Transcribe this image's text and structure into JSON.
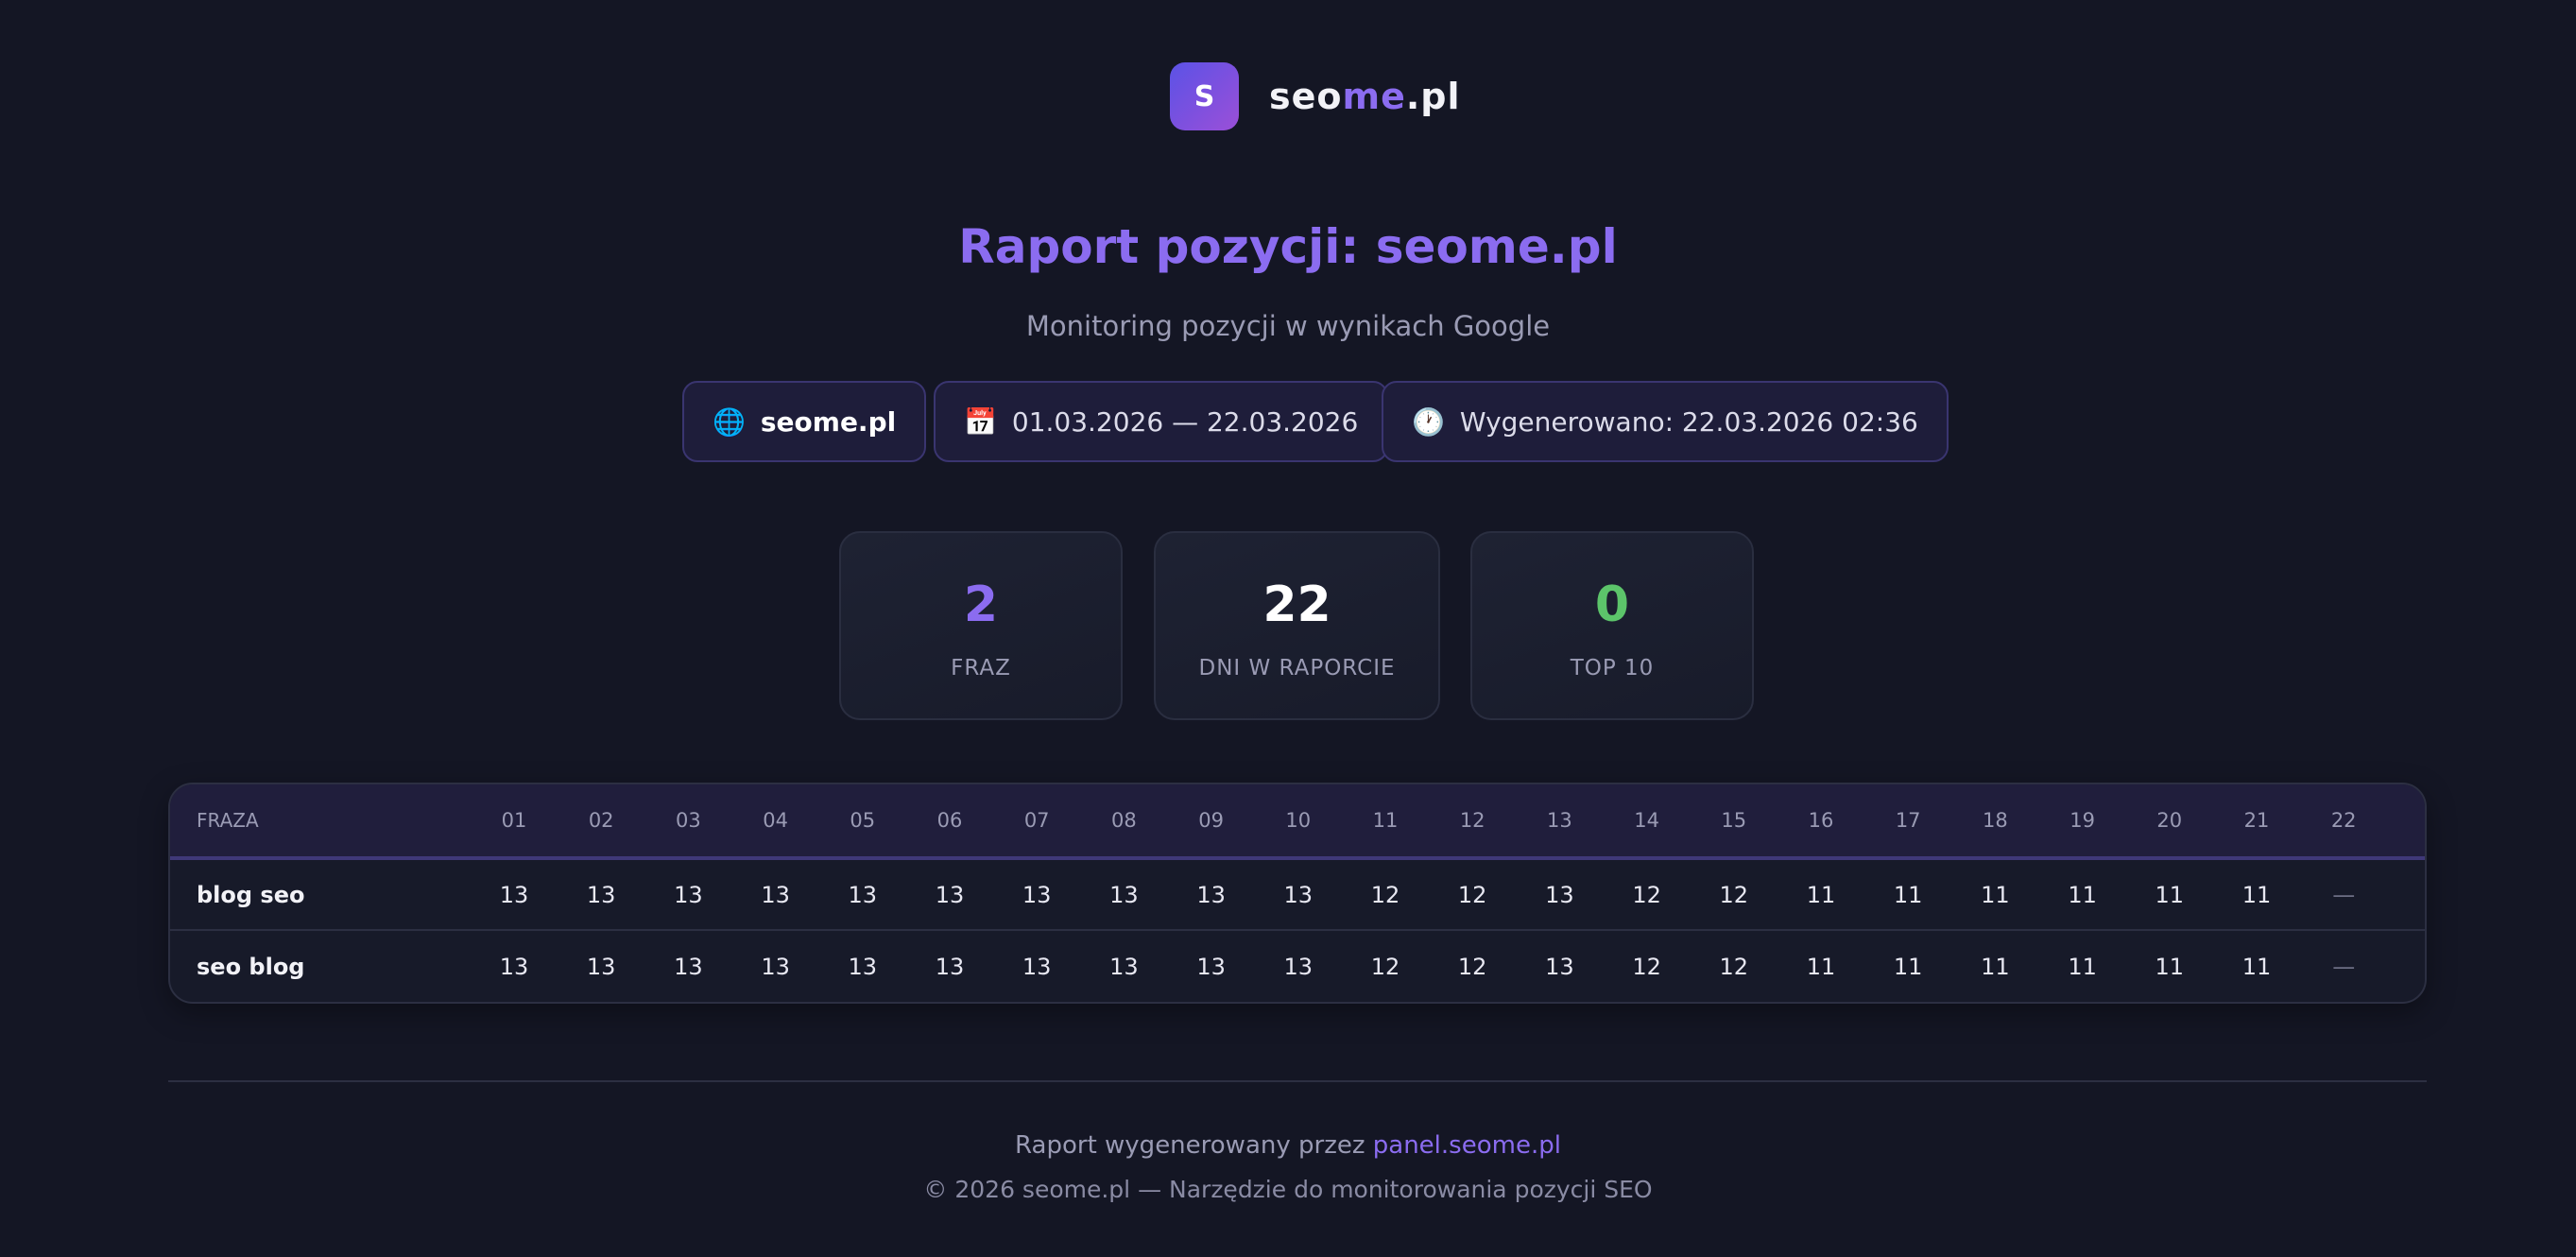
{
  "logo": {
    "letter": "S",
    "text_a": "seo",
    "text_b": "me",
    "text_c": ".pl"
  },
  "header": {
    "title": "Raport pozycji: seome.pl",
    "subtitle": "Monitoring pozycji w wynikach Google"
  },
  "chips": [
    {
      "icon": "globe-icon",
      "glyph": "🌐",
      "label": "seome.pl"
    },
    {
      "icon": "calendar-icon",
      "glyph": "📅",
      "label": "01.03.2026 — 22.03.2026"
    },
    {
      "icon": "clock-icon",
      "glyph": "🕐",
      "label": "Wygenerowano: 22.03.2026 02:36"
    }
  ],
  "stats": [
    {
      "value": "2",
      "label": "FRAZ",
      "color": "#8b6cf0"
    },
    {
      "value": "22",
      "label": "DNI W RAPORCIE",
      "color": "#ffffff"
    },
    {
      "value": "0",
      "label": "TOP 10",
      "color": "#5cc46a"
    }
  ],
  "table": {
    "header_fraza": "FRAZA",
    "days": [
      "01",
      "02",
      "03",
      "04",
      "05",
      "06",
      "07",
      "08",
      "09",
      "10",
      "11",
      "12",
      "13",
      "14",
      "15",
      "16",
      "17",
      "18",
      "19",
      "20",
      "21",
      "22"
    ],
    "rows": [
      {
        "phrase": "blog seo",
        "positions": [
          "13",
          "13",
          "13",
          "13",
          "13",
          "13",
          "13",
          "13",
          "13",
          "13",
          "12",
          "12",
          "13",
          "12",
          "12",
          "11",
          "11",
          "11",
          "11",
          "11",
          "11",
          "—"
        ]
      },
      {
        "phrase": "seo blog",
        "positions": [
          "13",
          "13",
          "13",
          "13",
          "13",
          "13",
          "13",
          "13",
          "13",
          "13",
          "12",
          "12",
          "13",
          "12",
          "12",
          "11",
          "11",
          "11",
          "11",
          "11",
          "11",
          "—"
        ]
      }
    ]
  },
  "footer": {
    "generated_by": "Raport wygenerowany przez",
    "link": "panel.seome.pl",
    "copyright": "© 2026 seome.pl — Narzędzie do monitorowania pozycji SEO"
  },
  "colors": {
    "accent": "#8b6cf0",
    "background": "#141624",
    "success": "#5cc46a"
  }
}
